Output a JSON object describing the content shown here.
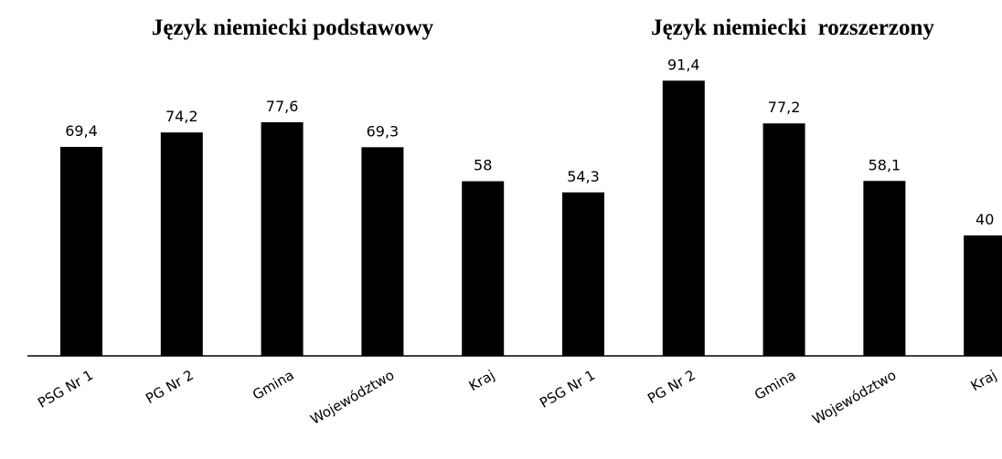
{
  "chart_data": {
    "type": "bar",
    "group_titles": [
      "Język niemiecki podstawowy",
      "Język niemiecki  rozszerzony"
    ],
    "categories": [
      "PSG Nr 1",
      "PG Nr 2",
      "Gmina",
      "Województwo",
      "Kraj",
      "PSG Nr 1",
      "PG Nr 2",
      "Gmina",
      "Województwo",
      "Kraj"
    ],
    "values": [
      69.4,
      74.2,
      77.6,
      69.3,
      58,
      54.3,
      91.4,
      77.2,
      58.1,
      40
    ],
    "value_labels": [
      "69,4",
      "74,2",
      "77,6",
      "69,3",
      "58",
      "54,3",
      "91,4",
      "77,2",
      "58,1",
      "40"
    ],
    "color": "#000000"
  }
}
